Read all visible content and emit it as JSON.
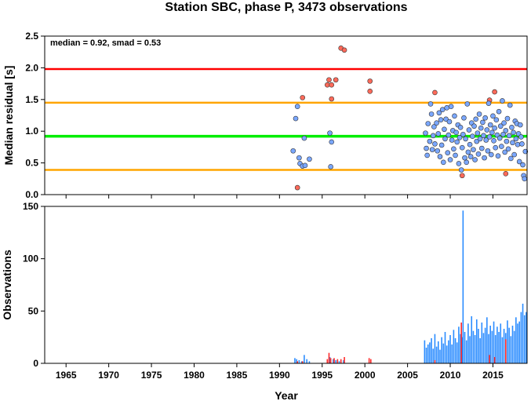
{
  "chart_data": [
    {
      "type": "scatter",
      "title": "Station SBC, phase P, 3473 observations",
      "xlabel": "",
      "ylabel": "Median residual [s]",
      "xlim": [
        1962.5,
        2019
      ],
      "ylim": [
        0,
        2.5
      ],
      "y_ticks": [
        "0.0",
        "0.5",
        "1.0",
        "1.5",
        "2.0",
        "2.5"
      ],
      "annotation": "median = 0.92, smad = 0.53",
      "reference_lines": [
        {
          "value": 1.98,
          "color": "#ff0000"
        },
        {
          "value": 1.45,
          "color": "#ffa500"
        },
        {
          "value": 0.92,
          "color": "#00ee00"
        },
        {
          "value": 0.39,
          "color": "#ffa500"
        }
      ],
      "series": [
        {
          "color": "#ff6a5a",
          "points": [
            [
              1992.1,
              0.11
            ],
            [
              1992.7,
              1.53
            ],
            [
              1995.6,
              1.73
            ],
            [
              1995.8,
              1.81
            ],
            [
              1996.1,
              1.73
            ],
            [
              1996.1,
              1.51
            ],
            [
              1996.6,
              1.81
            ],
            [
              1997.2,
              2.31
            ],
            [
              1997.6,
              2.28
            ],
            [
              2000.6,
              1.79
            ],
            [
              2000.6,
              1.63
            ],
            [
              2008.2,
              1.61
            ],
            [
              2011.4,
              0.3
            ],
            [
              2014.6,
              1.49
            ],
            [
              2015.2,
              1.62
            ],
            [
              2016.5,
              0.33
            ]
          ]
        },
        {
          "color": "#7aa7ff",
          "points": [
            [
              1991.6,
              0.69
            ],
            [
              1991.9,
              1.2
            ],
            [
              1992.1,
              1.39
            ],
            [
              1992.3,
              0.58
            ],
            [
              1992.4,
              0.49
            ],
            [
              1992.7,
              0.45
            ],
            [
              1992.9,
              0.89
            ],
            [
              1993.0,
              0.46
            ],
            [
              1993.5,
              0.56
            ],
            [
              1995.9,
              0.97
            ],
            [
              1996.0,
              0.44
            ],
            [
              1996.1,
              0.83
            ],
            [
              2007.1,
              0.97
            ],
            [
              2007.2,
              0.73
            ],
            [
              2007.3,
              0.62
            ],
            [
              2007.4,
              1.12
            ],
            [
              2007.6,
              0.84
            ],
            [
              2007.7,
              1.43
            ],
            [
              2007.8,
              1.27
            ],
            [
              2007.9,
              0.71
            ],
            [
              2008.0,
              0.93
            ],
            [
              2008.1,
              1.07
            ],
            [
              2008.2,
              0.8
            ],
            [
              2008.4,
              1.13
            ],
            [
              2008.5,
              0.69
            ],
            [
              2008.6,
              0.96
            ],
            [
              2008.7,
              1.29
            ],
            [
              2008.8,
              0.6
            ],
            [
              2008.9,
              1.18
            ],
            [
              2009.0,
              0.78
            ],
            [
              2009.1,
              1.34
            ],
            [
              2009.2,
              0.51
            ],
            [
              2009.3,
              1.03
            ],
            [
              2009.4,
              0.88
            ],
            [
              2009.5,
              1.19
            ],
            [
              2009.6,
              1.37
            ],
            [
              2009.7,
              0.66
            ],
            [
              2009.8,
              0.94
            ],
            [
              2009.9,
              1.15
            ],
            [
              2010.0,
              0.55
            ],
            [
              2010.1,
              1.39
            ],
            [
              2010.2,
              0.86
            ],
            [
              2010.3,
              1.01
            ],
            [
              2010.4,
              0.72
            ],
            [
              2010.5,
              1.24
            ],
            [
              2010.6,
              0.62
            ],
            [
              2010.7,
              0.98
            ],
            [
              2010.8,
              0.83
            ],
            [
              2010.9,
              1.1
            ],
            [
              2011.0,
              0.49
            ],
            [
              2011.1,
              0.9
            ],
            [
              2011.2,
              1.06
            ],
            [
              2011.3,
              0.39
            ],
            [
              2011.4,
              0.74
            ],
            [
              2011.5,
              0.95
            ],
            [
              2011.6,
              1.21
            ],
            [
              2011.7,
              0.58
            ],
            [
              2011.8,
              0.88
            ],
            [
              2011.9,
              0.51
            ],
            [
              2012.0,
              1.43
            ],
            [
              2012.1,
              0.67
            ],
            [
              2012.2,
              1.02
            ],
            [
              2012.3,
              0.79
            ],
            [
              2012.4,
              0.6
            ],
            [
              2012.5,
              1.13
            ],
            [
              2012.6,
              0.92
            ],
            [
              2012.7,
              0.71
            ],
            [
              2012.8,
              1.08
            ],
            [
              2012.9,
              0.55
            ],
            [
              2013.0,
              1.19
            ],
            [
              2013.1,
              0.84
            ],
            [
              2013.2,
              0.97
            ],
            [
              2013.3,
              0.64
            ],
            [
              2013.4,
              1.27
            ],
            [
              2013.5,
              0.88
            ],
            [
              2013.6,
              1.05
            ],
            [
              2013.7,
              0.73
            ],
            [
              2013.8,
              1.14
            ],
            [
              2013.9,
              0.93
            ],
            [
              2014.0,
              0.58
            ],
            [
              2014.1,
              1.21
            ],
            [
              2014.2,
              0.86
            ],
            [
              2014.3,
              1.02
            ],
            [
              2014.4,
              0.69
            ],
            [
              2014.5,
              1.44
            ],
            [
              2014.6,
              0.91
            ],
            [
              2014.7,
              1.1
            ],
            [
              2014.8,
              0.63
            ],
            [
              2014.9,
              0.98
            ],
            [
              2015.0,
              1.24
            ],
            [
              2015.1,
              0.85
            ],
            [
              2015.2,
              1.05
            ],
            [
              2015.3,
              0.74
            ],
            [
              2015.4,
              1.18
            ],
            [
              2015.5,
              0.94
            ],
            [
              2015.6,
              0.61
            ],
            [
              2015.7,
              1.31
            ],
            [
              2015.8,
              0.89
            ],
            [
              2015.9,
              1.08
            ],
            [
              2016.0,
              0.76
            ],
            [
              2016.1,
              1.48
            ],
            [
              2016.2,
              0.95
            ],
            [
              2016.3,
              1.13
            ],
            [
              2016.4,
              0.67
            ],
            [
              2016.5,
              1.01
            ],
            [
              2016.6,
              0.84
            ],
            [
              2016.7,
              1.2
            ],
            [
              2016.8,
              0.72
            ],
            [
              2016.9,
              0.93
            ],
            [
              2017.0,
              1.41
            ],
            [
              2017.1,
              0.57
            ],
            [
              2017.2,
              1.06
            ],
            [
              2017.3,
              0.82
            ],
            [
              2017.4,
              0.98
            ],
            [
              2017.5,
              0.63
            ],
            [
              2017.6,
              1.16
            ],
            [
              2017.7,
              0.88
            ],
            [
              2017.8,
              1.12
            ],
            [
              2017.9,
              0.79
            ],
            [
              2018.0,
              0.96
            ],
            [
              2018.1,
              0.52
            ],
            [
              2018.2,
              1.1
            ],
            [
              2018.3,
              0.91
            ],
            [
              2018.4,
              0.8
            ],
            [
              2018.5,
              0.47
            ],
            [
              2018.6,
              0.3
            ],
            [
              2018.7,
              0.25
            ],
            [
              2018.8,
              0.68
            ]
          ]
        }
      ]
    },
    {
      "type": "bar",
      "title": "",
      "xlabel": "Year",
      "ylabel": "Observations",
      "xlim": [
        1962.5,
        2019
      ],
      "ylim": [
        0,
        150
      ],
      "x_ticks": [
        "1965",
        "1970",
        "1975",
        "1980",
        "1985",
        "1990",
        "1995",
        "2000",
        "2005",
        "2010",
        "2015"
      ],
      "y_ticks": [
        "0",
        "50",
        "100",
        "150"
      ],
      "series": [
        {
          "color": "#2b8cff",
          "bars": [
            [
              1991.8,
              5
            ],
            [
              1992.0,
              4
            ],
            [
              1992.3,
              3
            ],
            [
              1992.6,
              2
            ],
            [
              1992.9,
              8
            ],
            [
              1993.2,
              4
            ],
            [
              1993.5,
              2
            ],
            [
              1995.9,
              6
            ],
            [
              1996.3,
              4
            ],
            [
              1996.6,
              3
            ],
            [
              1997.0,
              2
            ],
            [
              1997.5,
              3
            ],
            [
              2007.0,
              22
            ],
            [
              2007.2,
              15
            ],
            [
              2007.4,
              18
            ],
            [
              2007.6,
              20
            ],
            [
              2007.8,
              24
            ],
            [
              2008.0,
              14
            ],
            [
              2008.2,
              28
            ],
            [
              2008.4,
              16
            ],
            [
              2008.6,
              21
            ],
            [
              2008.8,
              13
            ],
            [
              2009.0,
              25
            ],
            [
              2009.2,
              19
            ],
            [
              2009.4,
              30
            ],
            [
              2009.6,
              17
            ],
            [
              2009.8,
              22
            ],
            [
              2010.0,
              27
            ],
            [
              2010.2,
              18
            ],
            [
              2010.4,
              32
            ],
            [
              2010.6,
              24
            ],
            [
              2010.8,
              20
            ],
            [
              2011.0,
              35
            ],
            [
              2011.2,
              28
            ],
            [
              2011.4,
              25
            ],
            [
              2011.5,
              146
            ],
            [
              2011.7,
              30
            ],
            [
              2011.9,
              22
            ],
            [
              2012.1,
              38
            ],
            [
              2012.3,
              26
            ],
            [
              2012.5,
              45
            ],
            [
              2012.7,
              31
            ],
            [
              2012.9,
              27
            ],
            [
              2013.1,
              42
            ],
            [
              2013.3,
              33
            ],
            [
              2013.5,
              24
            ],
            [
              2013.7,
              39
            ],
            [
              2013.9,
              29
            ],
            [
              2014.1,
              34
            ],
            [
              2014.3,
              44
            ],
            [
              2014.5,
              28
            ],
            [
              2014.7,
              36
            ],
            [
              2014.9,
              31
            ],
            [
              2015.1,
              40
            ],
            [
              2015.3,
              27
            ],
            [
              2015.5,
              35
            ],
            [
              2015.7,
              30
            ],
            [
              2015.9,
              38
            ],
            [
              2016.1,
              25
            ],
            [
              2016.3,
              33
            ],
            [
              2016.5,
              29
            ],
            [
              2016.7,
              41
            ],
            [
              2016.9,
              34
            ],
            [
              2017.1,
              26
            ],
            [
              2017.3,
              36
            ],
            [
              2017.5,
              31
            ],
            [
              2017.7,
              44
            ],
            [
              2017.9,
              38
            ],
            [
              2018.1,
              40
            ],
            [
              2018.3,
              49
            ],
            [
              2018.5,
              57
            ],
            [
              2018.7,
              46
            ],
            [
              2018.9,
              49
            ]
          ]
        },
        {
          "color": "#ff2a2a",
          "bars": [
            [
              1992.1,
              2
            ],
            [
              1992.7,
              2
            ],
            [
              1995.6,
              4
            ],
            [
              1995.8,
              10
            ],
            [
              1996.0,
              5
            ],
            [
              1996.4,
              5
            ],
            [
              1996.8,
              4
            ],
            [
              1997.2,
              4
            ],
            [
              1997.6,
              6
            ],
            [
              2000.5,
              5
            ],
            [
              2000.7,
              4
            ],
            [
              2008.2,
              3
            ],
            [
              2011.3,
              39
            ],
            [
              2014.6,
              8
            ],
            [
              2015.2,
              6
            ],
            [
              2016.5,
              23
            ]
          ]
        }
      ]
    }
  ]
}
